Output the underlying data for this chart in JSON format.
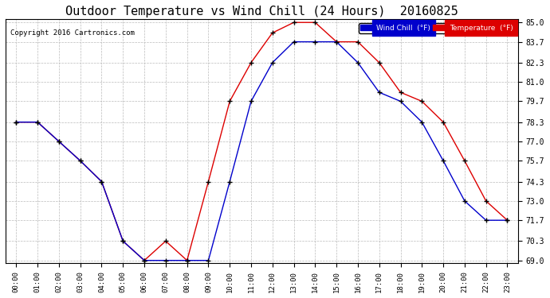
{
  "title": "Outdoor Temperature vs Wind Chill (24 Hours)  20160825",
  "copyright": "Copyright 2016 Cartronics.com",
  "hours": [
    "00:00",
    "01:00",
    "02:00",
    "03:00",
    "04:00",
    "05:00",
    "06:00",
    "07:00",
    "08:00",
    "09:00",
    "10:00",
    "11:00",
    "12:00",
    "13:00",
    "14:00",
    "15:00",
    "16:00",
    "17:00",
    "18:00",
    "19:00",
    "20:00",
    "21:00",
    "22:00",
    "23:00"
  ],
  "temperature": [
    78.3,
    78.3,
    77.0,
    75.7,
    74.3,
    70.3,
    69.0,
    70.3,
    69.0,
    74.3,
    79.7,
    82.3,
    84.3,
    85.0,
    85.0,
    83.7,
    83.7,
    82.3,
    80.3,
    79.7,
    78.3,
    75.7,
    73.0,
    71.7
  ],
  "wind_chill": [
    78.3,
    78.3,
    77.0,
    75.7,
    74.3,
    70.3,
    69.0,
    69.0,
    69.0,
    69.0,
    74.3,
    79.7,
    82.3,
    83.7,
    83.7,
    83.7,
    82.3,
    80.3,
    79.7,
    78.3,
    75.7,
    73.0,
    71.7,
    71.7
  ],
  "ylim_min": 69.0,
  "ylim_max": 85.0,
  "yticks": [
    69.0,
    70.3,
    71.7,
    73.0,
    74.3,
    75.7,
    77.0,
    78.3,
    79.7,
    81.0,
    82.3,
    83.7,
    85.0
  ],
  "temp_color": "#dd0000",
  "wind_color": "#0000cc",
  "bg_color": "#ffffff",
  "grid_color": "#bbbbbb",
  "title_fontsize": 11,
  "legend_wind_label": "Wind Chill  (°F)",
  "legend_temp_label": "Temperature  (°F)"
}
